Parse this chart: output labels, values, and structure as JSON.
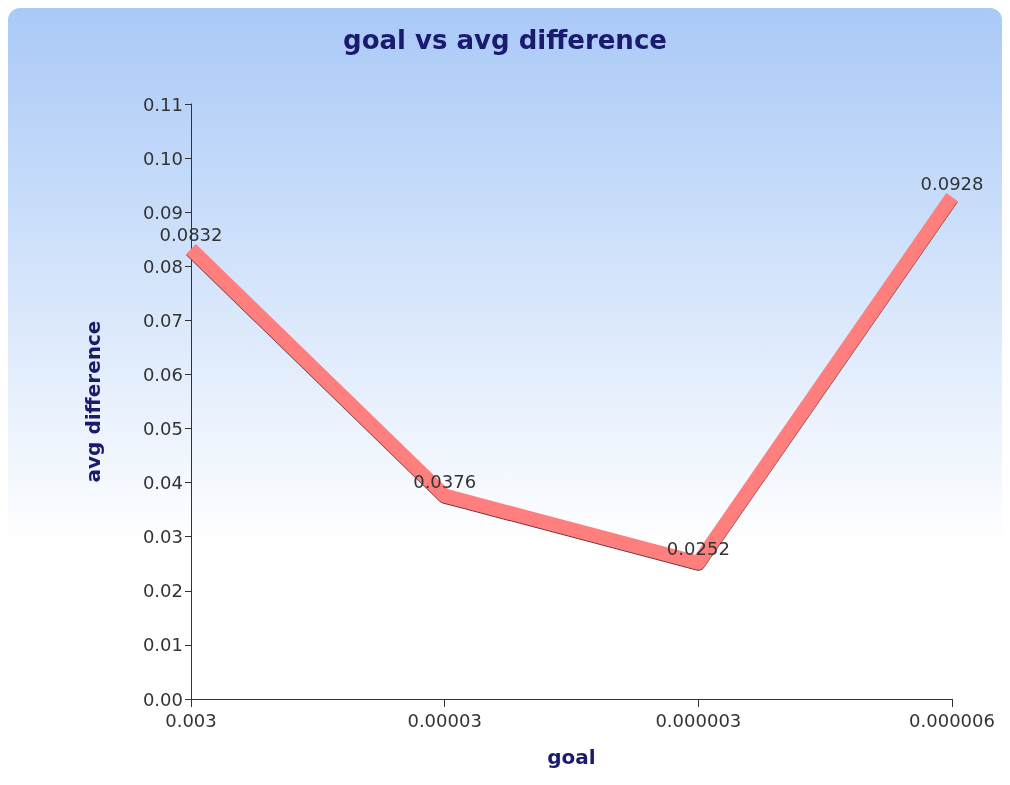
{
  "chart_data": {
    "type": "line",
    "title": "goal vs avg difference",
    "xlabel": "goal",
    "ylabel": "avg difference",
    "categories": [
      "0.003",
      "0.00003",
      "0.000003",
      "0.000006"
    ],
    "series": [
      {
        "color": "#ff7f7f",
        "values": [
          0.0832,
          0.0376,
          0.0252,
          0.0928
        ]
      }
    ],
    "data_labels": true,
    "marker": "none",
    "grid": false,
    "ylim": [
      0,
      0.11
    ],
    "yticks": [
      {
        "value": 0,
        "label": "0.00"
      },
      {
        "value": 0.01,
        "label": "0.01"
      },
      {
        "value": 0.02,
        "label": "0.02"
      },
      {
        "value": 0.03,
        "label": "0.03"
      },
      {
        "value": 0.04,
        "label": "0.04"
      },
      {
        "value": 0.05,
        "label": "0.05"
      },
      {
        "value": 0.06,
        "label": "0.06"
      },
      {
        "value": 0.07,
        "label": "0.07"
      },
      {
        "value": 0.08,
        "label": "0.08"
      },
      {
        "value": 0.09,
        "label": "0.09"
      },
      {
        "value": 0.1,
        "label": "0.10"
      },
      {
        "value": 0.11,
        "label": "0.11"
      }
    ]
  }
}
